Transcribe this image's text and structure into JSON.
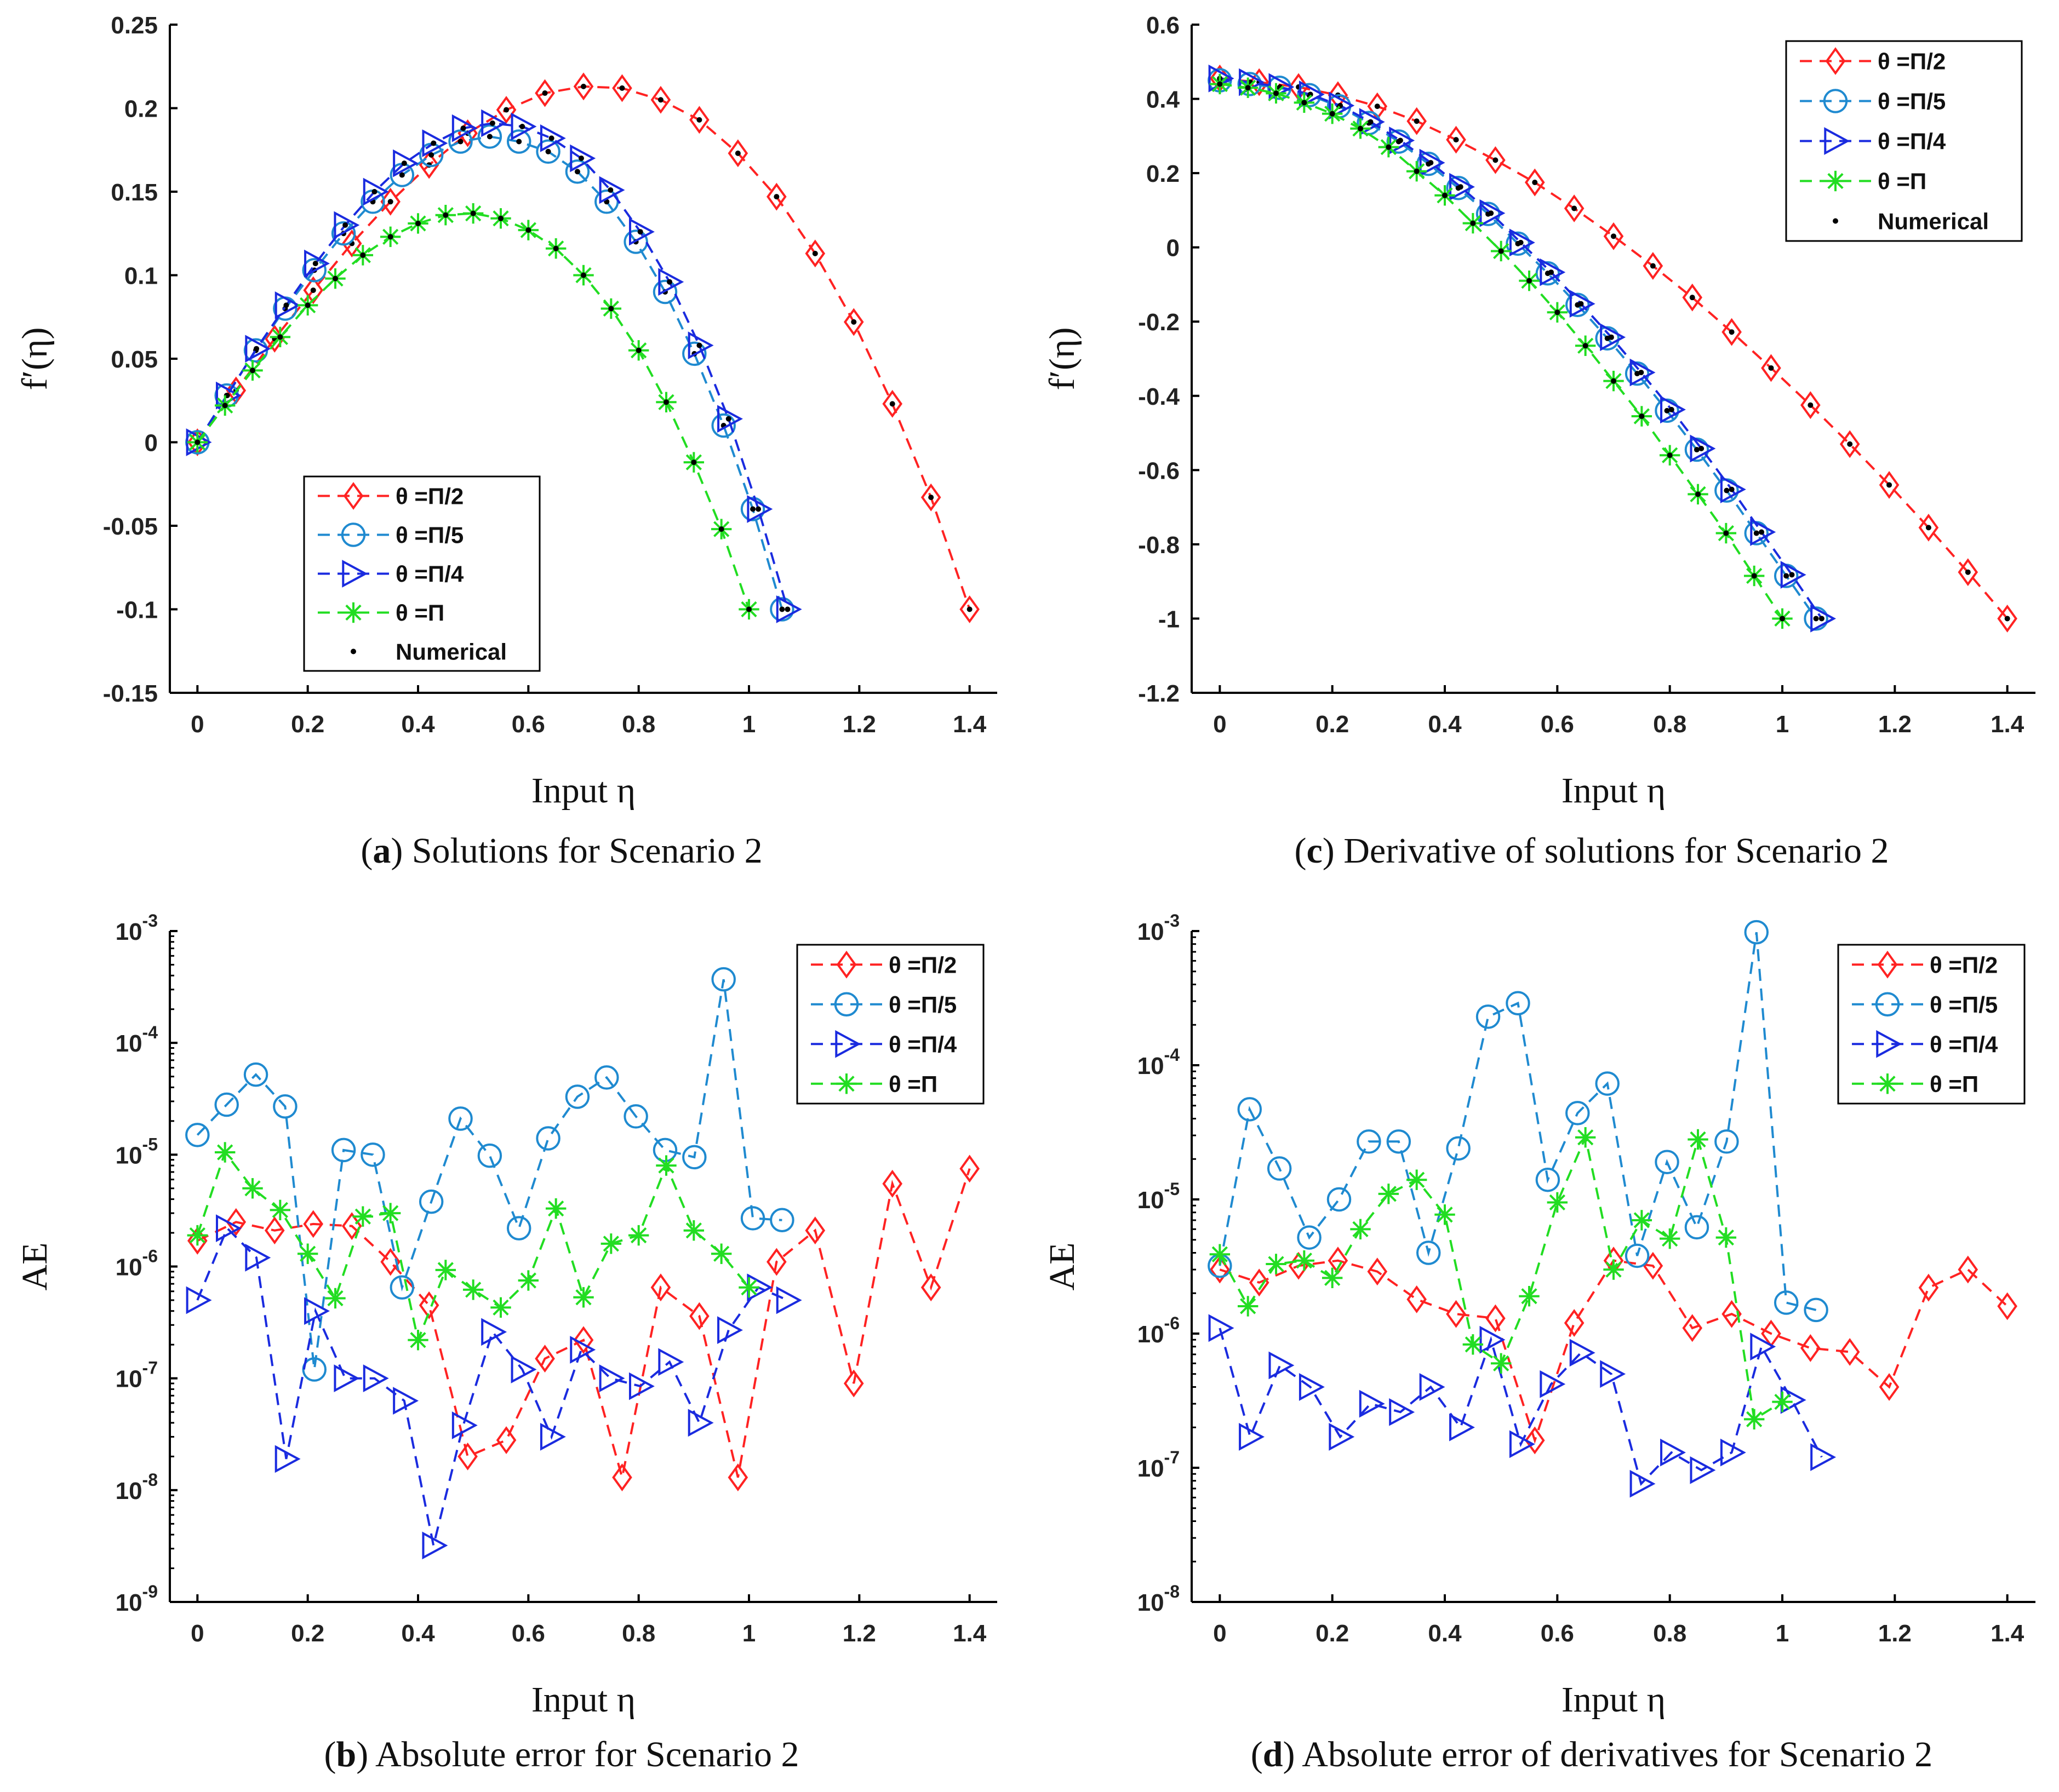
{
  "colors": {
    "red": "#ff2222",
    "lightblue": "#1f8ad0",
    "blue": "#1a2bdf",
    "green": "#22dd22",
    "numerical": "#000000"
  },
  "chart_data": [
    {
      "id": "a",
      "type": "line",
      "caption_letter": "a",
      "caption_text": " Solutions for Scenario 2",
      "xlabel": "Input η",
      "ylabel": "f′(η)",
      "yscale": "linear",
      "xlim": [
        -0.05,
        1.45
      ],
      "ylim": [
        -0.15,
        0.25
      ],
      "xticks": [
        0,
        0.2,
        0.4,
        0.6,
        0.8,
        1,
        1.2,
        1.4
      ],
      "xtick_labels": [
        "0",
        "0.2",
        "0.4",
        "0.6",
        "0.8",
        "1",
        "1.2",
        "1.4"
      ],
      "yticks": [
        -0.15,
        -0.1,
        -0.05,
        0,
        0.05,
        0.1,
        0.15,
        0.2,
        0.25
      ],
      "ytick_labels": [
        "-0.15",
        "-0.1",
        "-0.05",
        "0",
        "0.05",
        "0.1",
        "0.15",
        "0.2",
        "0.25"
      ],
      "legend_position": "bottom-left",
      "show_numerical": true,
      "legend_entries": [
        "θ =Π/2",
        "θ =Π/5",
        "θ =Π/4",
        "θ =Π",
        "Numerical"
      ],
      "series": [
        {
          "name": "θ =Π/2",
          "color_key": "red",
          "marker": "diamond",
          "x": [
            0,
            0.07,
            0.14,
            0.21,
            0.28,
            0.35,
            0.42,
            0.49,
            0.56,
            0.63,
            0.7,
            0.77,
            0.84,
            0.91,
            0.98,
            1.05,
            1.12,
            1.19,
            1.26,
            1.33,
            1.4
          ],
          "y": [
            0,
            0.031,
            0.062,
            0.091,
            0.119,
            0.144,
            0.166,
            0.185,
            0.199,
            0.209,
            0.213,
            0.212,
            0.205,
            0.193,
            0.173,
            0.147,
            0.113,
            0.072,
            0.023,
            -0.033,
            -0.1
          ]
        },
        {
          "name": "θ =Π/5",
          "color_key": "lightblue",
          "marker": "circle",
          "x": [
            0,
            0.053,
            0.106,
            0.159,
            0.212,
            0.265,
            0.318,
            0.371,
            0.424,
            0.477,
            0.53,
            0.583,
            0.636,
            0.689,
            0.742,
            0.795,
            0.848,
            0.901,
            0.954,
            1.007,
            1.06
          ],
          "y": [
            0,
            0.028,
            0.055,
            0.08,
            0.103,
            0.125,
            0.144,
            0.16,
            0.172,
            0.18,
            0.183,
            0.18,
            0.174,
            0.162,
            0.144,
            0.12,
            0.09,
            0.053,
            0.01,
            -0.04,
            -0.1
          ]
        },
        {
          "name": "θ =Π/4",
          "color_key": "blue",
          "marker": "triangle-right",
          "x": [
            0,
            0.054,
            0.107,
            0.161,
            0.214,
            0.268,
            0.321,
            0.375,
            0.428,
            0.482,
            0.535,
            0.589,
            0.642,
            0.696,
            0.749,
            0.803,
            0.856,
            0.91,
            0.963,
            1.017,
            1.07
          ],
          "y": [
            0,
            0.028,
            0.056,
            0.082,
            0.107,
            0.13,
            0.15,
            0.167,
            0.179,
            0.188,
            0.191,
            0.189,
            0.182,
            0.17,
            0.151,
            0.126,
            0.096,
            0.058,
            0.014,
            -0.04,
            -0.1
          ]
        },
        {
          "name": "θ =Π",
          "color_key": "green",
          "marker": "star",
          "x": [
            0,
            0.05,
            0.1,
            0.15,
            0.2,
            0.25,
            0.3,
            0.35,
            0.4,
            0.45,
            0.5,
            0.55,
            0.6,
            0.65,
            0.7,
            0.75,
            0.8,
            0.85,
            0.9,
            0.95,
            1.0
          ],
          "y": [
            0,
            0.022,
            0.043,
            0.063,
            0.082,
            0.098,
            0.112,
            0.123,
            0.131,
            0.136,
            0.137,
            0.134,
            0.127,
            0.116,
            0.1,
            0.08,
            0.055,
            0.024,
            -0.012,
            -0.052,
            -0.1
          ]
        }
      ]
    },
    {
      "id": "c",
      "type": "line",
      "caption_letter": "c",
      "caption_text": " Derivative of solutions for Scenario 2",
      "xlabel": "Input η",
      "ylabel": "f′(η)",
      "yscale": "linear",
      "xlim": [
        -0.05,
        1.45
      ],
      "ylim": [
        -1.2,
        0.6
      ],
      "xticks": [
        0,
        0.2,
        0.4,
        0.6,
        0.8,
        1,
        1.2,
        1.4
      ],
      "xtick_labels": [
        "0",
        "0.2",
        "0.4",
        "0.6",
        "0.8",
        "1",
        "1.2",
        "1.4"
      ],
      "yticks": [
        -1.2,
        -1,
        -0.8,
        -0.6,
        -0.4,
        -0.2,
        0,
        0.2,
        0.4,
        0.6
      ],
      "ytick_labels": [
        "-1.2",
        "-1",
        "-0.8",
        "-0.6",
        "-0.4",
        "-0.2",
        "0",
        "0.2",
        "0.4",
        "0.6"
      ],
      "legend_position": "top-right",
      "show_numerical": true,
      "legend_entries": [
        "θ =Π/2",
        "θ =Π/5",
        "θ =Π/4",
        "θ =Π",
        "Numerical"
      ],
      "series": [
        {
          "name": "θ =Π/2",
          "color_key": "red",
          "marker": "diamond",
          "x": [
            0,
            0.07,
            0.14,
            0.21,
            0.28,
            0.35,
            0.42,
            0.49,
            0.56,
            0.63,
            0.7,
            0.77,
            0.84,
            0.91,
            0.98,
            1.05,
            1.12,
            1.19,
            1.26,
            1.33,
            1.4
          ],
          "y": [
            0.455,
            0.445,
            0.432,
            0.41,
            0.38,
            0.34,
            0.29,
            0.235,
            0.175,
            0.105,
            0.03,
            -0.05,
            -0.135,
            -0.228,
            -0.325,
            -0.425,
            -0.53,
            -0.64,
            -0.755,
            -0.875,
            -1.0
          ]
        },
        {
          "name": "θ =Π/5",
          "color_key": "lightblue",
          "marker": "circle",
          "x": [
            0,
            0.053,
            0.106,
            0.159,
            0.212,
            0.265,
            0.318,
            0.371,
            0.424,
            0.477,
            0.53,
            0.583,
            0.636,
            0.689,
            0.742,
            0.795,
            0.848,
            0.901,
            0.954,
            1.007,
            1.06
          ],
          "y": [
            0.45,
            0.44,
            0.43,
            0.41,
            0.38,
            0.335,
            0.285,
            0.225,
            0.16,
            0.09,
            0.01,
            -0.07,
            -0.155,
            -0.245,
            -0.34,
            -0.44,
            -0.545,
            -0.655,
            -0.77,
            -0.885,
            -1.0
          ]
        },
        {
          "name": "θ =Π/4",
          "color_key": "blue",
          "marker": "triangle-right",
          "x": [
            0,
            0.054,
            0.107,
            0.161,
            0.214,
            0.268,
            0.321,
            0.375,
            0.428,
            0.482,
            0.535,
            0.589,
            0.642,
            0.696,
            0.749,
            0.803,
            0.856,
            0.91,
            0.963,
            1.017,
            1.07
          ],
          "y": [
            0.455,
            0.445,
            0.432,
            0.412,
            0.382,
            0.338,
            0.288,
            0.228,
            0.163,
            0.092,
            0.013,
            -0.067,
            -0.152,
            -0.242,
            -0.337,
            -0.437,
            -0.542,
            -0.652,
            -0.767,
            -0.882,
            -1.0
          ]
        },
        {
          "name": "θ =Π",
          "color_key": "green",
          "marker": "star",
          "x": [
            0,
            0.05,
            0.1,
            0.15,
            0.2,
            0.25,
            0.3,
            0.35,
            0.4,
            0.45,
            0.5,
            0.55,
            0.6,
            0.65,
            0.7,
            0.75,
            0.8,
            0.85,
            0.9,
            0.95,
            1.0
          ],
          "y": [
            0.44,
            0.43,
            0.415,
            0.39,
            0.36,
            0.32,
            0.27,
            0.205,
            0.14,
            0.065,
            -0.01,
            -0.09,
            -0.175,
            -0.265,
            -0.36,
            -0.455,
            -0.56,
            -0.665,
            -0.77,
            -0.885,
            -1.0
          ]
        }
      ]
    },
    {
      "id": "b",
      "type": "line",
      "caption_letter": "b",
      "caption_text": " Absolute error for Scenario 2",
      "xlabel": "Input η",
      "ylabel": "AE",
      "yscale": "log",
      "xlim": [
        -0.05,
        1.45
      ],
      "ylim_exponents": [
        -9,
        -3
      ],
      "xticks": [
        0,
        0.2,
        0.4,
        0.6,
        0.8,
        1,
        1.2,
        1.4
      ],
      "xtick_labels": [
        "0",
        "0.2",
        "0.4",
        "0.6",
        "0.8",
        "1",
        "1.2",
        "1.4"
      ],
      "yticks_exponents": [
        -9,
        -8,
        -7,
        -6,
        -5,
        -4,
        -3
      ],
      "ytick_labels": [
        "10-9",
        "10-8",
        "10-7",
        "10-6",
        "10-5",
        "10-4",
        "10-3"
      ],
      "legend_position": "top-right",
      "show_numerical": false,
      "legend_entries": [
        "θ =Π/2",
        "θ =Π/5",
        "θ =Π/4",
        "θ =Π"
      ],
      "series": [
        {
          "name": "θ =Π/2",
          "color_key": "red",
          "marker": "diamond",
          "x": [
            0,
            0.07,
            0.14,
            0.21,
            0.28,
            0.35,
            0.42,
            0.49,
            0.56,
            0.63,
            0.7,
            0.77,
            0.84,
            0.91,
            0.98,
            1.05,
            1.12,
            1.19,
            1.26,
            1.33,
            1.4
          ],
          "y": [
            1.7e-06,
            2.5e-06,
            2.1e-06,
            2.4e-06,
            2.3e-06,
            1.1e-06,
            4.5e-07,
            2e-08,
            2.8e-08,
            1.5e-07,
            2.2e-07,
            1.3e-08,
            6.5e-07,
            3.6e-07,
            1.3e-08,
            1.1e-06,
            2.1e-06,
            9e-08,
            5.5e-06,
            6.5e-07,
            7.5e-06
          ]
        },
        {
          "name": "θ =Π/5",
          "color_key": "lightblue",
          "marker": "circle",
          "x": [
            0,
            0.053,
            0.106,
            0.159,
            0.212,
            0.265,
            0.318,
            0.371,
            0.424,
            0.477,
            0.53,
            0.583,
            0.636,
            0.689,
            0.742,
            0.795,
            0.848,
            0.901,
            0.954,
            1.007,
            1.06
          ],
          "y": [
            1.5e-05,
            2.8e-05,
            5.2e-05,
            2.7e-05,
            1.2e-07,
            1.1e-05,
            1e-05,
            6.5e-07,
            3.8e-06,
            2.1e-05,
            9.8e-06,
            2.2e-06,
            1.4e-05,
            3.3e-05,
            4.9e-05,
            2.2e-05,
            1.1e-05,
            9.5e-06,
            0.00037,
            2.7e-06,
            2.6e-06
          ]
        },
        {
          "name": "θ =Π/4",
          "color_key": "blue",
          "marker": "triangle-right",
          "x": [
            0,
            0.054,
            0.107,
            0.161,
            0.214,
            0.268,
            0.321,
            0.375,
            0.428,
            0.482,
            0.535,
            0.589,
            0.642,
            0.696,
            0.749,
            0.803,
            0.856,
            0.91,
            0.963,
            1.017,
            1.07
          ],
          "y": [
            5e-07,
            2.2e-06,
            1.2e-06,
            1.9e-08,
            4e-07,
            1e-07,
            1e-07,
            6.3e-08,
            3.2e-09,
            3.8e-08,
            2.6e-07,
            1.2e-07,
            3e-08,
            1.8e-07,
            1e-07,
            8.5e-08,
            1.4e-07,
            4e-08,
            2.7e-07,
            6.5e-07,
            5e-07
          ]
        },
        {
          "name": "θ =Π",
          "color_key": "green",
          "marker": "star",
          "x": [
            0,
            0.05,
            0.1,
            0.15,
            0.2,
            0.25,
            0.3,
            0.35,
            0.4,
            0.45,
            0.5,
            0.55,
            0.6,
            0.65,
            0.7,
            0.75,
            0.8,
            0.85,
            0.9,
            0.95,
            1.0
          ],
          "y": [
            1.9e-06,
            1.05e-05,
            5e-06,
            3.2e-06,
            1.3e-06,
            5.2e-07,
            2.8e-06,
            3e-06,
            2.2e-07,
            9.3e-07,
            6.2e-07,
            4.3e-07,
            7.5e-07,
            3.3e-06,
            5.3e-07,
            1.6e-06,
            1.9e-06,
            8e-06,
            2.1e-06,
            1.3e-06,
            6.5e-07
          ]
        }
      ]
    },
    {
      "id": "d",
      "type": "line",
      "caption_letter": "d",
      "caption_text": " Absolute error of derivatives for Scenario 2",
      "xlabel": "Input η",
      "ylabel": "AE",
      "yscale": "log",
      "xlim": [
        -0.05,
        1.45
      ],
      "ylim_exponents": [
        -8,
        -3
      ],
      "xticks": [
        0,
        0.2,
        0.4,
        0.6,
        0.8,
        1,
        1.2,
        1.4
      ],
      "xtick_labels": [
        "0",
        "0.2",
        "0.4",
        "0.6",
        "0.8",
        "1",
        "1.2",
        "1.4"
      ],
      "yticks_exponents": [
        -8,
        -7,
        -6,
        -5,
        -4,
        -3
      ],
      "ytick_labels": [
        "10-8",
        "10-7",
        "10-6",
        "10-5",
        "10-4",
        "10-3"
      ],
      "legend_position": "top-right",
      "show_numerical": false,
      "legend_entries": [
        "θ =Π/2",
        "θ =Π/5",
        "θ =Π/4",
        "θ =Π"
      ],
      "series": [
        {
          "name": "θ =Π/2",
          "color_key": "red",
          "marker": "diamond",
          "x": [
            0,
            0.07,
            0.14,
            0.21,
            0.28,
            0.35,
            0.42,
            0.49,
            0.56,
            0.63,
            0.7,
            0.77,
            0.84,
            0.91,
            0.98,
            1.05,
            1.12,
            1.19,
            1.26,
            1.33,
            1.4
          ],
          "y": [
            3e-06,
            2.4e-06,
            3.2e-06,
            3.5e-06,
            2.9e-06,
            1.8e-06,
            1.4e-06,
            1.3e-06,
            1.6e-07,
            1.2e-06,
            3.5e-06,
            3.2e-06,
            1.1e-06,
            1.4e-06,
            1e-06,
            7.8e-07,
            7.3e-07,
            4e-07,
            2.2e-06,
            3e-06,
            1.6e-06
          ]
        },
        {
          "name": "θ =Π/5",
          "color_key": "lightblue",
          "marker": "circle",
          "x": [
            0,
            0.053,
            0.106,
            0.159,
            0.212,
            0.265,
            0.318,
            0.371,
            0.424,
            0.477,
            0.53,
            0.583,
            0.636,
            0.689,
            0.742,
            0.795,
            0.848,
            0.901,
            0.954,
            1.007,
            1.06
          ],
          "y": [
            3.2e-06,
            4.7e-05,
            1.7e-05,
            5.2e-06,
            1e-05,
            2.7e-05,
            2.7e-05,
            4e-06,
            2.4e-05,
            0.00023,
            0.00029,
            1.4e-05,
            4.4e-05,
            7.3e-05,
            3.8e-06,
            1.9e-05,
            6.2e-06,
            2.7e-05,
            0.00098,
            1.7e-06,
            1.5e-06
          ]
        },
        {
          "name": "θ =Π/4",
          "color_key": "blue",
          "marker": "triangle-right",
          "x": [
            0,
            0.054,
            0.107,
            0.161,
            0.214,
            0.268,
            0.321,
            0.375,
            0.428,
            0.482,
            0.535,
            0.589,
            0.642,
            0.696,
            0.749,
            0.803,
            0.856,
            0.91,
            0.963,
            1.017,
            1.07
          ],
          "y": [
            1.1e-06,
            1.7e-07,
            5.8e-07,
            4e-07,
            1.7e-07,
            3e-07,
            2.6e-07,
            4e-07,
            2e-07,
            9e-07,
            1.5e-07,
            4.2e-07,
            7.2e-07,
            5e-07,
            7.6e-08,
            1.3e-07,
            9.6e-08,
            1.3e-07,
            8e-07,
            3.2e-07,
            1.2e-07
          ]
        },
        {
          "name": "θ =Π",
          "color_key": "green",
          "marker": "star",
          "x": [
            0,
            0.05,
            0.1,
            0.15,
            0.2,
            0.25,
            0.3,
            0.35,
            0.4,
            0.45,
            0.5,
            0.55,
            0.6,
            0.65,
            0.7,
            0.75,
            0.8,
            0.85,
            0.9,
            0.95,
            1.0
          ],
          "y": [
            3.9e-06,
            1.6e-06,
            3.3e-06,
            3.5e-06,
            2.6e-06,
            6e-06,
            1.1e-05,
            1.4e-05,
            7.7e-06,
            8.3e-07,
            6e-07,
            1.9e-06,
            9.5e-06,
            2.9e-05,
            3e-06,
            7e-06,
            5.1e-06,
            2.8e-05,
            5.2e-06,
            2.3e-07,
            3.1e-07
          ]
        }
      ]
    }
  ]
}
